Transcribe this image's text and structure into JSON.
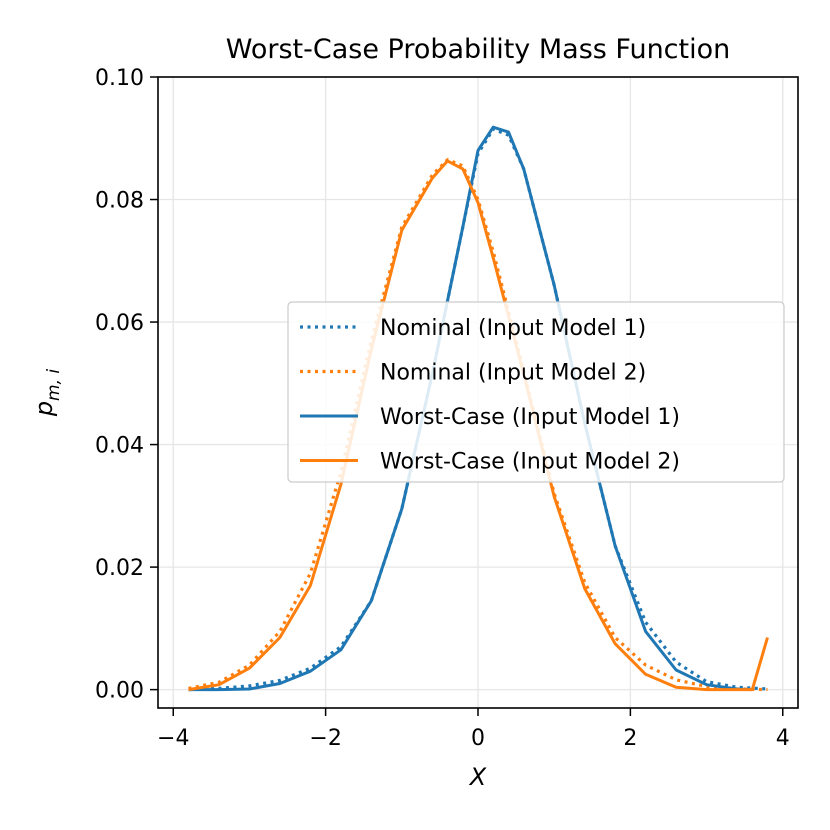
{
  "chart_data": {
    "type": "line",
    "title": "Worst-Case Probability Mass Function",
    "xlabel": "X",
    "ylabel": "p_{m,i}",
    "ylabel_main": "p",
    "ylabel_sub": "m, i",
    "xlim": [
      -4.2,
      4.2
    ],
    "ylim": [
      -0.003,
      0.1
    ],
    "xticks": [
      -4,
      -2,
      0,
      2,
      4
    ],
    "xtick_labels": [
      "−4",
      "−2",
      "0",
      "2",
      "4"
    ],
    "yticks": [
      0.0,
      0.02,
      0.04,
      0.06,
      0.08,
      0.1
    ],
    "ytick_labels": [
      "0.00",
      "0.02",
      "0.04",
      "0.06",
      "0.08",
      "0.10"
    ],
    "grid": true,
    "legend_position": "center-right",
    "series": [
      {
        "name": "Nominal (Input Model 1)",
        "color": "#1f77b4",
        "style": "dotted",
        "x": [
          -3.8,
          -3.4,
          -3.0,
          -2.6,
          -2.2,
          -1.8,
          -1.4,
          -1.0,
          -0.6,
          -0.2,
          0.0,
          0.2,
          0.4,
          0.6,
          1.0,
          1.4,
          1.8,
          2.2,
          2.6,
          3.0,
          3.4,
          3.8
        ],
        "y": [
          0.0,
          0.0002,
          0.0006,
          0.0015,
          0.0035,
          0.007,
          0.0145,
          0.0295,
          0.0515,
          0.0755,
          0.0875,
          0.0915,
          0.0905,
          0.085,
          0.066,
          0.0435,
          0.0235,
          0.011,
          0.0045,
          0.0013,
          0.0004,
          0.0001
        ]
      },
      {
        "name": "Nominal (Input Model 2)",
        "color": "#ff7f0e",
        "style": "dotted",
        "x": [
          -3.8,
          -3.4,
          -3.0,
          -2.6,
          -2.2,
          -1.8,
          -1.4,
          -1.0,
          -0.6,
          -0.4,
          -0.2,
          0.0,
          0.2,
          0.6,
          1.0,
          1.4,
          1.8,
          2.2,
          2.6,
          3.0,
          3.4,
          3.8
        ],
        "y": [
          0.0002,
          0.0012,
          0.004,
          0.0095,
          0.019,
          0.0355,
          0.057,
          0.0755,
          0.084,
          0.0865,
          0.0855,
          0.08,
          0.0715,
          0.052,
          0.032,
          0.0175,
          0.0085,
          0.004,
          0.0016,
          0.0005,
          0.0001,
          0.0
        ]
      },
      {
        "name": "Worst-Case (Input Model 1)",
        "color": "#1f77b4",
        "style": "solid",
        "x": [
          -3.8,
          -3.4,
          -3.0,
          -2.6,
          -2.2,
          -1.8,
          -1.4,
          -1.0,
          -0.6,
          -0.2,
          0.0,
          0.2,
          0.4,
          0.6,
          1.0,
          1.4,
          1.8,
          2.2,
          2.6,
          3.0,
          3.4,
          3.6
        ],
        "y": [
          0.0,
          0.0,
          0.0001,
          0.001,
          0.003,
          0.0065,
          0.0145,
          0.0295,
          0.0515,
          0.0755,
          0.088,
          0.0918,
          0.091,
          0.085,
          0.066,
          0.0435,
          0.0235,
          0.0095,
          0.0032,
          0.0008,
          0.0001,
          0.0
        ]
      },
      {
        "name": "Worst-Case (Input Model 2)",
        "color": "#ff7f0e",
        "style": "solid",
        "x": [
          -3.8,
          -3.4,
          -3.0,
          -2.6,
          -2.2,
          -1.8,
          -1.4,
          -1.0,
          -0.6,
          -0.4,
          -0.2,
          0.0,
          0.2,
          0.6,
          1.0,
          1.4,
          1.8,
          2.2,
          2.6,
          3.0,
          3.4,
          3.6,
          3.8
        ],
        "y": [
          0.0,
          0.0008,
          0.0035,
          0.0085,
          0.017,
          0.0335,
          0.0555,
          0.075,
          0.0835,
          0.0863,
          0.085,
          0.0795,
          0.0705,
          0.0515,
          0.0315,
          0.0165,
          0.0075,
          0.0025,
          0.0004,
          0.0,
          0.0,
          0.0,
          0.0085
        ]
      }
    ]
  }
}
